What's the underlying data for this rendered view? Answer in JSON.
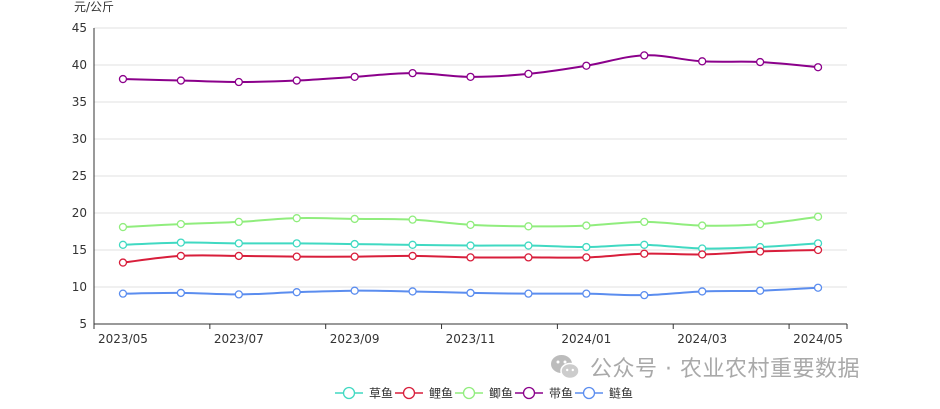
{
  "watermark": {
    "text": "公众号 · 农业农村重要数据",
    "icon": "wechat-icon"
  },
  "chart_data": {
    "type": "line",
    "title": "",
    "xlabel": "",
    "ylabel": "元/公斤",
    "x": [
      "2023/05",
      "2023/06",
      "2023/07",
      "2023/08",
      "2023/09",
      "2023/10",
      "2023/11",
      "2023/12",
      "2024/01",
      "2024/02",
      "2024/03",
      "2024/04",
      "2024/05"
    ],
    "x_tick_labels": [
      "2023/05",
      "2023/07",
      "2023/09",
      "2023/11",
      "2024/01",
      "2024/03",
      "2024/05"
    ],
    "y_ticks": [
      5,
      10,
      15,
      20,
      25,
      30,
      35,
      40,
      45
    ],
    "ylim": [
      5,
      45
    ],
    "grid": true,
    "legend_position": "bottom-center",
    "series": [
      {
        "name": "草鱼",
        "color": "#40d9c2",
        "values": [
          15.7,
          16.0,
          15.9,
          15.9,
          15.8,
          15.7,
          15.6,
          15.6,
          15.4,
          15.7,
          15.2,
          15.4,
          15.9
        ]
      },
      {
        "name": "鲤鱼",
        "color": "#d81e3b",
        "values": [
          13.3,
          14.2,
          14.2,
          14.1,
          14.1,
          14.2,
          14.0,
          14.0,
          14.0,
          14.5,
          14.4,
          14.8,
          15.0
        ]
      },
      {
        "name": "鲫鱼",
        "color": "#90ed7d",
        "values": [
          18.1,
          18.5,
          18.8,
          19.3,
          19.2,
          19.1,
          18.4,
          18.2,
          18.3,
          18.8,
          18.3,
          18.5,
          19.5
        ]
      },
      {
        "name": "带鱼",
        "color": "#8b008b",
        "values": [
          38.1,
          37.9,
          37.7,
          37.9,
          38.4,
          38.9,
          38.4,
          38.8,
          39.9,
          41.3,
          40.5,
          40.4,
          39.7
        ]
      },
      {
        "name": "鲢鱼",
        "color": "#5b8def",
        "values": [
          9.1,
          9.2,
          9.0,
          9.3,
          9.5,
          9.4,
          9.2,
          9.1,
          9.1,
          8.9,
          9.4,
          9.5,
          9.9
        ]
      }
    ]
  }
}
